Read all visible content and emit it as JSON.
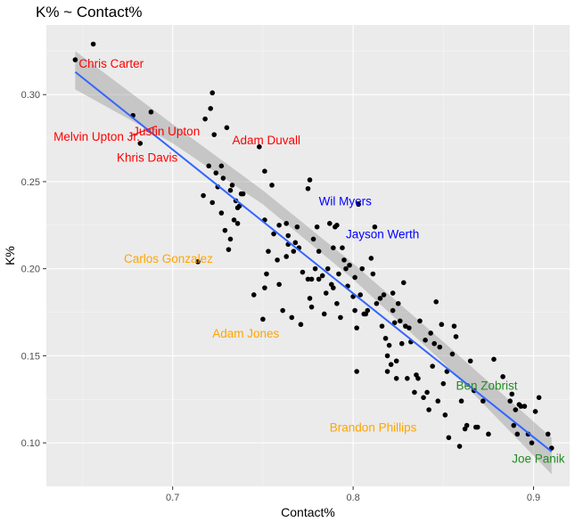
{
  "chart_data": {
    "type": "scatter",
    "title": "K% ~ Contact%",
    "xlabel": "Contact%",
    "ylabel": "K%",
    "xlim": [
      0.63,
      0.92
    ],
    "ylim": [
      0.075,
      0.34
    ],
    "x_ticks": [
      0.7,
      0.8,
      0.9
    ],
    "x_tick_labels": [
      "0.7",
      "0.8",
      "0.9"
    ],
    "y_ticks": [
      0.1,
      0.15,
      0.2,
      0.25,
      0.3
    ],
    "y_tick_labels": [
      "0.10",
      "0.15",
      "0.20",
      "0.25",
      "0.30"
    ],
    "grid": true,
    "points": [
      [
        0.646,
        0.32
      ],
      [
        0.656,
        0.329
      ],
      [
        0.678,
        0.288
      ],
      [
        0.688,
        0.29
      ],
      [
        0.682,
        0.272
      ],
      [
        0.714,
        0.204
      ],
      [
        0.717,
        0.242
      ],
      [
        0.718,
        0.286
      ],
      [
        0.72,
        0.259
      ],
      [
        0.721,
        0.292
      ],
      [
        0.722,
        0.301
      ],
      [
        0.723,
        0.277
      ],
      [
        0.722,
        0.238
      ],
      [
        0.724,
        0.255
      ],
      [
        0.725,
        0.247
      ],
      [
        0.727,
        0.259
      ],
      [
        0.727,
        0.232
      ],
      [
        0.728,
        0.252
      ],
      [
        0.73,
        0.281
      ],
      [
        0.729,
        0.222
      ],
      [
        0.731,
        0.211
      ],
      [
        0.732,
        0.217
      ],
      [
        0.732,
        0.245
      ],
      [
        0.733,
        0.248
      ],
      [
        0.734,
        0.228
      ],
      [
        0.735,
        0.239
      ],
      [
        0.736,
        0.235
      ],
      [
        0.736,
        0.226
      ],
      [
        0.737,
        0.236
      ],
      [
        0.738,
        0.243
      ],
      [
        0.739,
        0.243
      ],
      [
        0.745,
        0.185
      ],
      [
        0.748,
        0.27
      ],
      [
        0.75,
        0.171
      ],
      [
        0.751,
        0.189
      ],
      [
        0.751,
        0.228
      ],
      [
        0.751,
        0.256
      ],
      [
        0.753,
        0.21
      ],
      [
        0.752,
        0.197
      ],
      [
        0.755,
        0.248
      ],
      [
        0.756,
        0.22
      ],
      [
        0.758,
        0.205
      ],
      [
        0.759,
        0.225
      ],
      [
        0.759,
        0.191
      ],
      [
        0.761,
        0.176
      ],
      [
        0.763,
        0.226
      ],
      [
        0.763,
        0.207
      ],
      [
        0.764,
        0.219
      ],
      [
        0.764,
        0.214
      ],
      [
        0.766,
        0.172
      ],
      [
        0.767,
        0.21
      ],
      [
        0.768,
        0.215
      ],
      [
        0.769,
        0.224
      ],
      [
        0.77,
        0.212
      ],
      [
        0.771,
        0.168
      ],
      [
        0.772,
        0.198
      ],
      [
        0.775,
        0.246
      ],
      [
        0.775,
        0.194
      ],
      [
        0.776,
        0.251
      ],
      [
        0.776,
        0.183
      ],
      [
        0.777,
        0.194
      ],
      [
        0.777,
        0.178
      ],
      [
        0.778,
        0.217
      ],
      [
        0.779,
        0.2
      ],
      [
        0.78,
        0.224
      ],
      [
        0.781,
        0.21
      ],
      [
        0.781,
        0.194
      ],
      [
        0.783,
        0.196
      ],
      [
        0.784,
        0.174
      ],
      [
        0.785,
        0.186
      ],
      [
        0.786,
        0.2
      ],
      [
        0.787,
        0.226
      ],
      [
        0.788,
        0.191
      ],
      [
        0.789,
        0.189
      ],
      [
        0.789,
        0.212
      ],
      [
        0.79,
        0.224
      ],
      [
        0.791,
        0.225
      ],
      [
        0.791,
        0.18
      ],
      [
        0.792,
        0.197
      ],
      [
        0.793,
        0.172
      ],
      [
        0.794,
        0.212
      ],
      [
        0.795,
        0.205
      ],
      [
        0.796,
        0.2
      ],
      [
        0.797,
        0.19
      ],
      [
        0.798,
        0.202
      ],
      [
        0.8,
        0.184
      ],
      [
        0.801,
        0.176
      ],
      [
        0.801,
        0.195
      ],
      [
        0.802,
        0.166
      ],
      [
        0.803,
        0.237
      ],
      [
        0.802,
        0.141
      ],
      [
        0.804,
        0.185
      ],
      [
        0.805,
        0.2
      ],
      [
        0.806,
        0.174
      ],
      [
        0.807,
        0.174
      ],
      [
        0.808,
        0.176
      ],
      [
        0.81,
        0.206
      ],
      [
        0.811,
        0.197
      ],
      [
        0.812,
        0.224
      ],
      [
        0.813,
        0.18
      ],
      [
        0.815,
        0.183
      ],
      [
        0.816,
        0.167
      ],
      [
        0.817,
        0.185
      ],
      [
        0.818,
        0.16
      ],
      [
        0.819,
        0.15
      ],
      [
        0.819,
        0.141
      ],
      [
        0.82,
        0.156
      ],
      [
        0.821,
        0.145
      ],
      [
        0.822,
        0.176
      ],
      [
        0.822,
        0.186
      ],
      [
        0.823,
        0.169
      ],
      [
        0.824,
        0.147
      ],
      [
        0.824,
        0.137
      ],
      [
        0.825,
        0.18
      ],
      [
        0.826,
        0.17
      ],
      [
        0.827,
        0.157
      ],
      [
        0.828,
        0.192
      ],
      [
        0.829,
        0.167
      ],
      [
        0.83,
        0.137
      ],
      [
        0.831,
        0.166
      ],
      [
        0.832,
        0.158
      ],
      [
        0.834,
        0.129
      ],
      [
        0.835,
        0.139
      ],
      [
        0.836,
        0.137
      ],
      [
        0.837,
        0.17
      ],
      [
        0.839,
        0.126
      ],
      [
        0.84,
        0.159
      ],
      [
        0.841,
        0.129
      ],
      [
        0.842,
        0.119
      ],
      [
        0.843,
        0.163
      ],
      [
        0.844,
        0.144
      ],
      [
        0.845,
        0.157
      ],
      [
        0.846,
        0.181
      ],
      [
        0.847,
        0.124
      ],
      [
        0.848,
        0.155
      ],
      [
        0.849,
        0.168
      ],
      [
        0.85,
        0.134
      ],
      [
        0.851,
        0.116
      ],
      [
        0.852,
        0.141
      ],
      [
        0.853,
        0.103
      ],
      [
        0.855,
        0.151
      ],
      [
        0.856,
        0.167
      ],
      [
        0.857,
        0.161
      ],
      [
        0.859,
        0.098
      ],
      [
        0.86,
        0.124
      ],
      [
        0.862,
        0.108
      ],
      [
        0.863,
        0.11
      ],
      [
        0.865,
        0.147
      ],
      [
        0.867,
        0.13
      ],
      [
        0.868,
        0.109
      ],
      [
        0.869,
        0.109
      ],
      [
        0.872,
        0.124
      ],
      [
        0.875,
        0.105
      ],
      [
        0.878,
        0.148
      ],
      [
        0.883,
        0.138
      ],
      [
        0.887,
        0.124
      ],
      [
        0.888,
        0.128
      ],
      [
        0.889,
        0.11
      ],
      [
        0.89,
        0.119
      ],
      [
        0.891,
        0.105
      ],
      [
        0.892,
        0.122
      ],
      [
        0.893,
        0.121
      ],
      [
        0.895,
        0.121
      ],
      [
        0.897,
        0.105
      ],
      [
        0.899,
        0.1
      ],
      [
        0.901,
        0.118
      ],
      [
        0.903,
        0.126
      ],
      [
        0.908,
        0.105
      ],
      [
        0.91,
        0.097
      ]
    ],
    "trend_line": {
      "x": [
        0.646,
        0.91
      ],
      "y": [
        0.313,
        0.095
      ],
      "color": "#3366FF"
    },
    "confidence_band": {
      "x": [
        0.646,
        0.7,
        0.75,
        0.8,
        0.85,
        0.91
      ],
      "lower": [
        0.303,
        0.272,
        0.237,
        0.194,
        0.146,
        0.082
      ],
      "upper": [
        0.325,
        0.283,
        0.245,
        0.203,
        0.158,
        0.103
      ]
    },
    "annotations": [
      {
        "text": "Chris Carter",
        "x": 0.648,
        "y": 0.318,
        "color": "#FF0000"
      },
      {
        "text": "Justin Upton",
        "x": 0.678,
        "y": 0.279,
        "color": "#FF0000"
      },
      {
        "text": "Melvin Upton Jr.",
        "x": 0.634,
        "y": 0.276,
        "color": "#FF0000"
      },
      {
        "text": "Adam Duvall",
        "x": 0.733,
        "y": 0.274,
        "color": "#FF0000"
      },
      {
        "text": "Khris Davis",
        "x": 0.669,
        "y": 0.264,
        "color": "#FF0000"
      },
      {
        "text": "Wil Myers",
        "x": 0.781,
        "y": 0.239,
        "color": "#0000FF"
      },
      {
        "text": "Jayson Werth",
        "x": 0.796,
        "y": 0.22,
        "color": "#0000FF"
      },
      {
        "text": "Carlos Gonzalez",
        "x": 0.673,
        "y": 0.206,
        "color": "#FFA500"
      },
      {
        "text": "Adam Jones",
        "x": 0.722,
        "y": 0.163,
        "color": "#FFA500"
      },
      {
        "text": "Brandon Phillips",
        "x": 0.787,
        "y": 0.109,
        "color": "#FFA500"
      },
      {
        "text": "Ben Zobrist",
        "x": 0.857,
        "y": 0.133,
        "color": "#228B22"
      },
      {
        "text": "Joe Panik",
        "x": 0.888,
        "y": 0.091,
        "color": "#228B22"
      }
    ]
  }
}
